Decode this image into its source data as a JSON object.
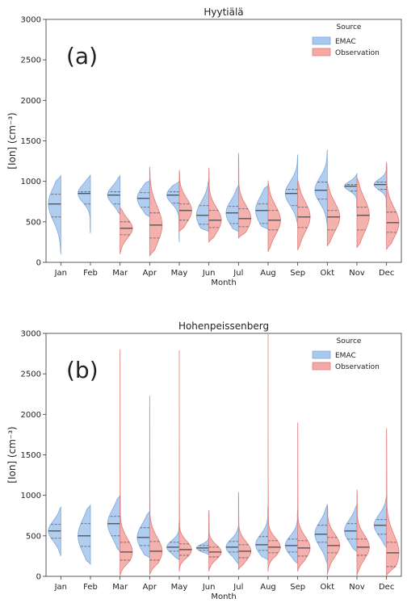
{
  "chart_data": [
    {
      "type": "violin",
      "title": "Hyytiälä",
      "panel_label": "(a)",
      "xlabel": "Month",
      "ylabel": "[Ion] (cm⁻³)",
      "ylim": [
        0,
        3000
      ],
      "yticks": [
        0,
        500,
        1000,
        1500,
        2000,
        2500,
        3000
      ],
      "categories": [
        "Jan",
        "Feb",
        "Mar",
        "Apr",
        "May",
        "Jun",
        "Jul",
        "Aug",
        "Sep",
        "Okt",
        "Nov",
        "Dec"
      ],
      "legend": {
        "title": "Source",
        "placement": "top-right",
        "entries": [
          "EMAC",
          "Observation"
        ]
      },
      "series": [
        {
          "name": "EMAC",
          "color": "#a9c8ee",
          "edge": "#7fa8dc",
          "min": [
            100,
            360,
            590,
            560,
            250,
            380,
            380,
            410,
            450,
            430,
            650,
            650
          ],
          "q1": [
            560,
            720,
            720,
            680,
            730,
            470,
            480,
            480,
            700,
            780,
            880,
            900
          ],
          "median": [
            720,
            850,
            830,
            790,
            830,
            580,
            610,
            640,
            850,
            890,
            940,
            960
          ],
          "q3": [
            840,
            870,
            870,
            860,
            870,
            700,
            690,
            720,
            900,
            990,
            960,
            990
          ],
          "max": [
            1070,
            1080,
            1070,
            1010,
            1000,
            1030,
            950,
            950,
            1330,
            1390,
            1100,
            1220
          ]
        },
        {
          "name": "Observation",
          "color": "#f4a9a4",
          "edge": "#e07c76",
          "min": [
            null,
            null,
            100,
            80,
            380,
            250,
            300,
            130,
            150,
            200,
            180,
            160
          ],
          "q1": [
            null,
            null,
            340,
            300,
            520,
            430,
            440,
            400,
            430,
            400,
            400,
            370
          ],
          "median": [
            null,
            null,
            420,
            460,
            640,
            520,
            540,
            520,
            560,
            560,
            580,
            490
          ],
          "q3": [
            null,
            null,
            500,
            610,
            720,
            640,
            660,
            640,
            680,
            640,
            680,
            620
          ],
          "max": [
            null,
            null,
            680,
            1180,
            1140,
            1170,
            1350,
            1010,
            1020,
            1000,
            1050,
            1240
          ]
        }
      ]
    },
    {
      "type": "violin",
      "title": "Hohenpeissenberg",
      "panel_label": "(b)",
      "xlabel": "Month",
      "ylabel": "[Ion] (cm⁻³)",
      "ylim": [
        0,
        3000
      ],
      "yticks": [
        0,
        500,
        1000,
        1500,
        2000,
        2500,
        3000
      ],
      "categories": [
        "Jan",
        "Feb",
        "Mar",
        "Apr",
        "May",
        "Jun",
        "Jul",
        "Aug",
        "Sep",
        "Okt",
        "Nov",
        "Dec"
      ],
      "legend": {
        "title": "Source",
        "placement": "top-right",
        "entries": [
          "EMAC",
          "Observation"
        ]
      },
      "series": [
        {
          "name": "EMAC",
          "color": "#a9c8ee",
          "edge": "#7fa8dc",
          "min": [
            250,
            150,
            300,
            230,
            200,
            260,
            150,
            200,
            150,
            150,
            300,
            350
          ],
          "q1": [
            470,
            370,
            500,
            380,
            310,
            320,
            300,
            320,
            300,
            420,
            460,
            520
          ],
          "median": [
            560,
            500,
            650,
            480,
            360,
            350,
            360,
            390,
            380,
            520,
            560,
            630
          ],
          "q3": [
            640,
            650,
            740,
            600,
            420,
            380,
            430,
            490,
            460,
            630,
            650,
            700
          ],
          "max": [
            860,
            880,
            1000,
            800,
            680,
            820,
            620,
            870,
            830,
            890,
            890,
            1000
          ]
        },
        {
          "name": "Observation",
          "color": "#f4a9a4",
          "edge": "#e07c76",
          "min": [
            null,
            null,
            10,
            20,
            60,
            60,
            80,
            60,
            60,
            20,
            10,
            10
          ],
          "q1": [
            null,
            null,
            200,
            200,
            260,
            240,
            230,
            290,
            250,
            290,
            260,
            120
          ],
          "median": [
            null,
            null,
            300,
            310,
            330,
            300,
            310,
            360,
            350,
            380,
            360,
            290
          ],
          "q3": [
            null,
            null,
            420,
            430,
            400,
            360,
            390,
            440,
            440,
            480,
            460,
            420
          ],
          "max": [
            null,
            null,
            2800,
            2230,
            2790,
            810,
            1040,
            3000,
            1900,
            890,
            1070,
            1830
          ]
        }
      ]
    }
  ]
}
